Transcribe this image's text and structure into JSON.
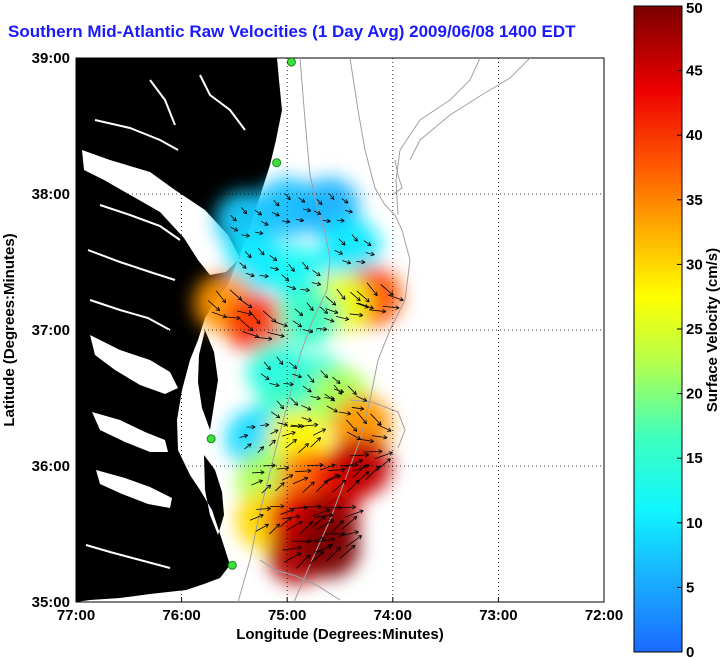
{
  "chart_data": {
    "type": "heatmap",
    "title": "Southern Mid-Atlantic Raw Velocities (1 Day Avg) 2009/06/08 1400 EDT",
    "xlabel": "Longitude (Degrees:Minutes)",
    "ylabel": "Latitude (Degrees:Minutes)",
    "colorbar_label": "Surface Velocity (cm/s)",
    "xlim": [
      -77,
      -72
    ],
    "ylim": [
      35,
      39
    ],
    "clim": [
      0,
      50
    ],
    "x_ticks": [
      {
        "value": -77,
        "label": "77:00"
      },
      {
        "value": -76,
        "label": "76:00"
      },
      {
        "value": -75,
        "label": "75:00"
      },
      {
        "value": -74,
        "label": "74:00"
      },
      {
        "value": -73,
        "label": "73:00"
      },
      {
        "value": -72,
        "label": "72:00"
      }
    ],
    "y_ticks": [
      {
        "value": 35,
        "label": "35:00"
      },
      {
        "value": 36,
        "label": "36:00"
      },
      {
        "value": 37,
        "label": "37:00"
      },
      {
        "value": 38,
        "label": "38:00"
      },
      {
        "value": 39,
        "label": "39:00"
      }
    ],
    "colorbar_ticks": [
      {
        "value": 0,
        "label": "0"
      },
      {
        "value": 5,
        "label": "5"
      },
      {
        "value": 10,
        "label": "10"
      },
      {
        "value": 15,
        "label": "15"
      },
      {
        "value": 20,
        "label": "20"
      },
      {
        "value": 25,
        "label": "25"
      },
      {
        "value": 30,
        "label": "30"
      },
      {
        "value": 35,
        "label": "35"
      },
      {
        "value": 40,
        "label": "40"
      },
      {
        "value": 45,
        "label": "45"
      },
      {
        "value": 50,
        "label": "50"
      }
    ],
    "grid": true,
    "grid_style": "dotted",
    "colormap": "jet",
    "land_color": "#5af0a8",
    "contour_color": "#a0a0a0",
    "station_color": "#3ce03c",
    "arrow_color": "#000000",
    "speed_field": [
      {
        "lon": -75.4,
        "lat": 37.8,
        "speed": 8
      },
      {
        "lon": -75.0,
        "lat": 37.9,
        "speed": 7
      },
      {
        "lon": -74.6,
        "lat": 37.9,
        "speed": 6
      },
      {
        "lon": -74.4,
        "lat": 37.6,
        "speed": 10
      },
      {
        "lon": -75.3,
        "lat": 37.5,
        "speed": 10
      },
      {
        "lon": -74.9,
        "lat": 37.4,
        "speed": 12
      },
      {
        "lon": -75.6,
        "lat": 37.2,
        "speed": 34
      },
      {
        "lon": -75.3,
        "lat": 37.05,
        "speed": 40
      },
      {
        "lon": -74.2,
        "lat": 37.25,
        "speed": 38
      },
      {
        "lon": -74.5,
        "lat": 37.2,
        "speed": 26
      },
      {
        "lon": -74.8,
        "lat": 37.1,
        "speed": 16
      },
      {
        "lon": -75.1,
        "lat": 36.7,
        "speed": 14
      },
      {
        "lon": -74.7,
        "lat": 36.6,
        "speed": 15
      },
      {
        "lon": -75.0,
        "lat": 36.4,
        "speed": 16
      },
      {
        "lon": -75.3,
        "lat": 36.2,
        "speed": 9
      },
      {
        "lon": -74.9,
        "lat": 36.2,
        "speed": 28
      },
      {
        "lon": -74.5,
        "lat": 36.5,
        "speed": 22
      },
      {
        "lon": -74.3,
        "lat": 36.3,
        "speed": 34
      },
      {
        "lon": -75.2,
        "lat": 35.9,
        "speed": 22
      },
      {
        "lon": -74.8,
        "lat": 35.9,
        "speed": 36
      },
      {
        "lon": -74.5,
        "lat": 35.9,
        "speed": 42
      },
      {
        "lon": -74.3,
        "lat": 36.0,
        "speed": 46
      },
      {
        "lon": -75.2,
        "lat": 35.6,
        "speed": 30
      },
      {
        "lon": -74.9,
        "lat": 35.6,
        "speed": 44
      },
      {
        "lon": -74.6,
        "lat": 35.6,
        "speed": 48
      },
      {
        "lon": -74.9,
        "lat": 35.35,
        "speed": 47
      },
      {
        "lon": -74.6,
        "lat": 35.4,
        "speed": 50
      }
    ],
    "stations": [
      {
        "lon": -74.96,
        "lat": 38.97
      },
      {
        "lon": -75.1,
        "lat": 38.23
      },
      {
        "lon": -75.72,
        "lat": 36.2
      },
      {
        "lon": -75.52,
        "lat": 35.27
      }
    ]
  }
}
